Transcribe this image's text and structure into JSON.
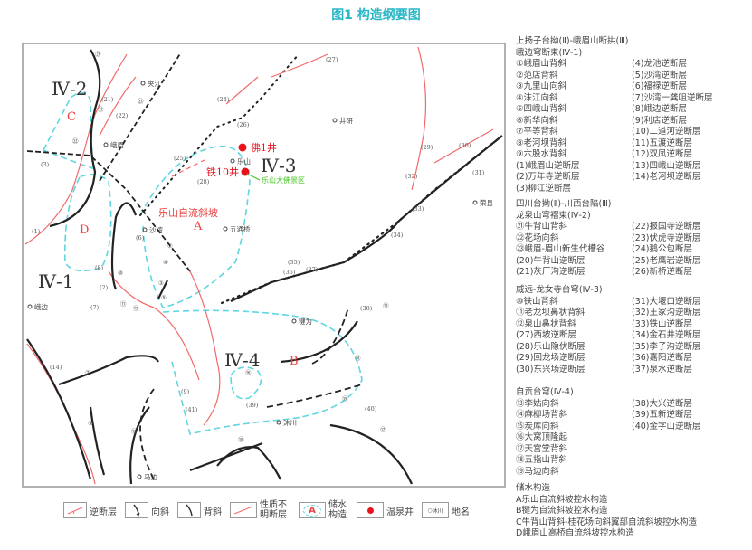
{
  "title": "图1 构造纲要图",
  "colors": {
    "fault": "#f06a6a",
    "fold": "#333333",
    "boundary": "#5fd6e0",
    "well": "#e8121a",
    "title": "#29b6c6",
    "scenic": "#4cc62a"
  },
  "map": {
    "regions": [
      "Ⅳ-2",
      "Ⅳ-3",
      "Ⅳ-1",
      "Ⅳ-4"
    ],
    "zones": [
      "A",
      "B",
      "C",
      "D"
    ],
    "slope_label": "乐山自流斜坡",
    "wells": [
      "佛1井",
      "铁10井"
    ],
    "scenic": "乐山大佛景区",
    "places": [
      "夹江",
      "峨眉",
      "乐山",
      "沙湾",
      "五通桥",
      "井研",
      "荣县",
      "犍为",
      "沐川",
      "马边",
      "峨边"
    ],
    "feature_labels": [
      "(24)",
      "(26)",
      "(25)",
      "(28)",
      "(27)",
      "(29)",
      "(30)",
      "(31)",
      "(32)",
      "(33)",
      "(34)",
      "(35)",
      "(36)",
      "(37)",
      "(38)",
      "(39)",
      "(40)",
      "(41)",
      "(21)",
      "(22)",
      "(1)",
      "(3)",
      "(7)",
      "(9)",
      "(14)",
      "(8)",
      "(2)",
      "(6)"
    ],
    "fold_labels": [
      "㉑",
      "㉑",
      "㉒",
      "㉓",
      "⑦",
      "⑨",
      "⑫",
      "⑬",
      "⑭",
      "⑮",
      "⑯",
      "⑰",
      "⑱",
      "⑲",
      "⑩",
      "⑪",
      "②",
      "③",
      "④",
      "⑤"
    ]
  },
  "legend": {
    "g1": {
      "header1": "上扬子台拗(Ⅱ)-峨眉山断拱(Ⅲ)",
      "header2": "峨边穹断束(Ⅳ-1)",
      "left": [
        "①峨眉山背斜",
        "②范店背斜",
        "③九里山向斜",
        "④沫江向斜",
        "⑤四峨山背斜",
        "⑥新华向斜",
        "⑦平等背斜",
        "⑧老河坝背斜",
        "⑨六股水背斜",
        "(1)峨眉山逆断层",
        "(2)万年寺逆断层",
        "(3)柳江逆断层"
      ],
      "right": [
        "(4)龙池逆断层",
        "(5)沙湾逆断层",
        "(6)福禄逆断层",
        "(7)沙湾一龚咀逆断层",
        "(8)峨边逆断层",
        "(9)利店逆断层",
        "(10)二道河逆断层",
        "(11)五渡逆断层",
        "(12)双凤逆断层",
        "(13)四峨山逆断层",
        "(14)老河坝逆断层"
      ]
    },
    "g2": {
      "header1": "四川台拗(Ⅱ)-川西台陷(Ⅲ)",
      "header2": "龙泉山穹褶束(Ⅳ-2)",
      "left": [
        "㉑牛背山背斜",
        "㉒花场向斜",
        "㉓峨眉-眉山新生代槽谷",
        "(20)牛背山逆断层",
        "(21)灰厂沟逆断层"
      ],
      "right": [
        "(22)报国寺逆断层",
        "(23)伏虎寺逆断层",
        "(24)鹅公包断层",
        "(25)老鹰岩逆断层",
        "(26)新桥逆断层"
      ]
    },
    "g3": {
      "header2": "威远-龙女寺台穹(Ⅳ-3)",
      "left": [
        "⑩铁山背斜",
        "⑪老龙坝鼻状背斜",
        "⑫泉山鼻状背斜",
        "(27)西坡逆断层",
        "(28)乐山隐伏断层",
        "(29)回龙场逆断层",
        "(30)东兴场逆断层"
      ],
      "right": [
        "(31)大堰口逆断层",
        "(32)王家沟逆断层",
        "(33)铁山逆断层",
        "(34)金石井逆断层",
        "(35)李子沟逆断层",
        "(36)嘉阳逆断层",
        "(37)泉水逆断层"
      ]
    },
    "g4": {
      "header2": "自贡台穹(Ⅳ-4)",
      "left": [
        "⑬李姑向斜",
        "⑭麻柳场背斜",
        "⑮炭库向斜",
        "⑯大窝顶隆起",
        "⑰天宫堂背斜",
        "⑱五指山背斜",
        "⑲马边向斜"
      ],
      "right": [
        "(38)大兴逆断层",
        "(39)五新逆断层",
        "(40)金字山逆断层"
      ]
    },
    "water": {
      "header": "储水构造",
      "items": [
        "A乐山自流斜坡控水构造",
        "B犍为自流斜坡控水构造",
        "C牛背山背斜-桂花场向斜翼部自流斜坡控水构造",
        "D峨眉山高桥自流斜坡控水构造"
      ]
    }
  },
  "bottom_legend": [
    {
      "label": "逆断层",
      "icon": "reverse-fault-icon"
    },
    {
      "label": "向斜",
      "icon": "syncline-icon"
    },
    {
      "label": "背斜",
      "icon": "anticline-icon"
    },
    {
      "label": "性质不明断层",
      "icon": "unknown-fault-icon"
    },
    {
      "label": "储水构造",
      "icon": "water-structure-icon",
      "symbol": "A"
    },
    {
      "label": "温泉井",
      "icon": "hot-spring-well-icon"
    },
    {
      "label": "地名",
      "icon": "place-name-icon",
      "symbol": "沐川"
    }
  ]
}
